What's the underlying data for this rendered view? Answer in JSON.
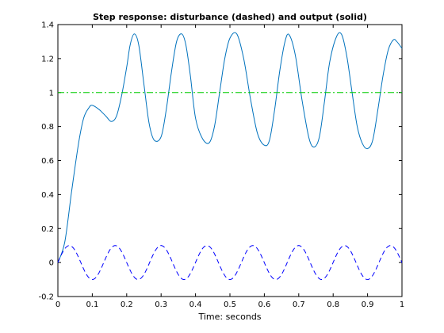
{
  "chart_data": {
    "type": "line",
    "title": "Step response: disturbance (dashed) and  output (solid)",
    "xlabel": "Time: seconds",
    "ylabel": "",
    "xlim": [
      0,
      1
    ],
    "ylim": [
      -0.2,
      1.4
    ],
    "xticks": [
      "0",
      "0.1",
      "0.2",
      "0.3",
      "0.4",
      "0.5",
      "0.6",
      "0.7",
      "0.8",
      "0.9",
      "1"
    ],
    "yticks": [
      "-0.2",
      "0",
      "0.2",
      "0.4",
      "0.6",
      "0.8",
      "1",
      "1.2",
      "1.4"
    ],
    "grid": false,
    "series": [
      {
        "style": "solid",
        "color": "#0072bd",
        "x": [
          0,
          0.02,
          0.04,
          0.06,
          0.075,
          0.09,
          0.1,
          0.12,
          0.14,
          0.155,
          0.17,
          0.185,
          0.2,
          0.21,
          0.222,
          0.235,
          0.25,
          0.265,
          0.28,
          0.3,
          0.315,
          0.33,
          0.345,
          0.36,
          0.372,
          0.385,
          0.4,
          0.42,
          0.44,
          0.455,
          0.47,
          0.485,
          0.5,
          0.52,
          0.54,
          0.56,
          0.58,
          0.6,
          0.615,
          0.63,
          0.645,
          0.66,
          0.672,
          0.69,
          0.71,
          0.73,
          0.745,
          0.76,
          0.775,
          0.79,
          0.81,
          0.825,
          0.84,
          0.855,
          0.87,
          0.885,
          0.9,
          0.915,
          0.93,
          0.945,
          0.96,
          0.975,
          0.985,
          1.0
        ],
        "y": [
          0,
          0.12,
          0.42,
          0.7,
          0.85,
          0.91,
          0.925,
          0.9,
          0.86,
          0.83,
          0.86,
          0.98,
          1.15,
          1.28,
          1.345,
          1.28,
          1.05,
          0.82,
          0.72,
          0.74,
          0.9,
          1.12,
          1.3,
          1.345,
          1.28,
          1.1,
          0.85,
          0.73,
          0.705,
          0.8,
          1.0,
          1.2,
          1.32,
          1.345,
          1.2,
          0.96,
          0.76,
          0.69,
          0.72,
          0.9,
          1.13,
          1.3,
          1.34,
          1.22,
          0.95,
          0.73,
          0.68,
          0.74,
          0.95,
          1.18,
          1.33,
          1.34,
          1.21,
          1.0,
          0.8,
          0.7,
          0.67,
          0.72,
          0.9,
          1.1,
          1.25,
          1.31,
          1.3,
          1.26
        ]
      },
      {
        "style": "dashed",
        "color": "#0000ff",
        "function": "0.1*sin(2*pi*t/0.1333)",
        "amplitude": 0.1,
        "period": 0.1333
      },
      {
        "style": "dashdot",
        "color": "#00cc00",
        "x": [
          0,
          1
        ],
        "y": [
          1,
          1
        ]
      }
    ]
  }
}
